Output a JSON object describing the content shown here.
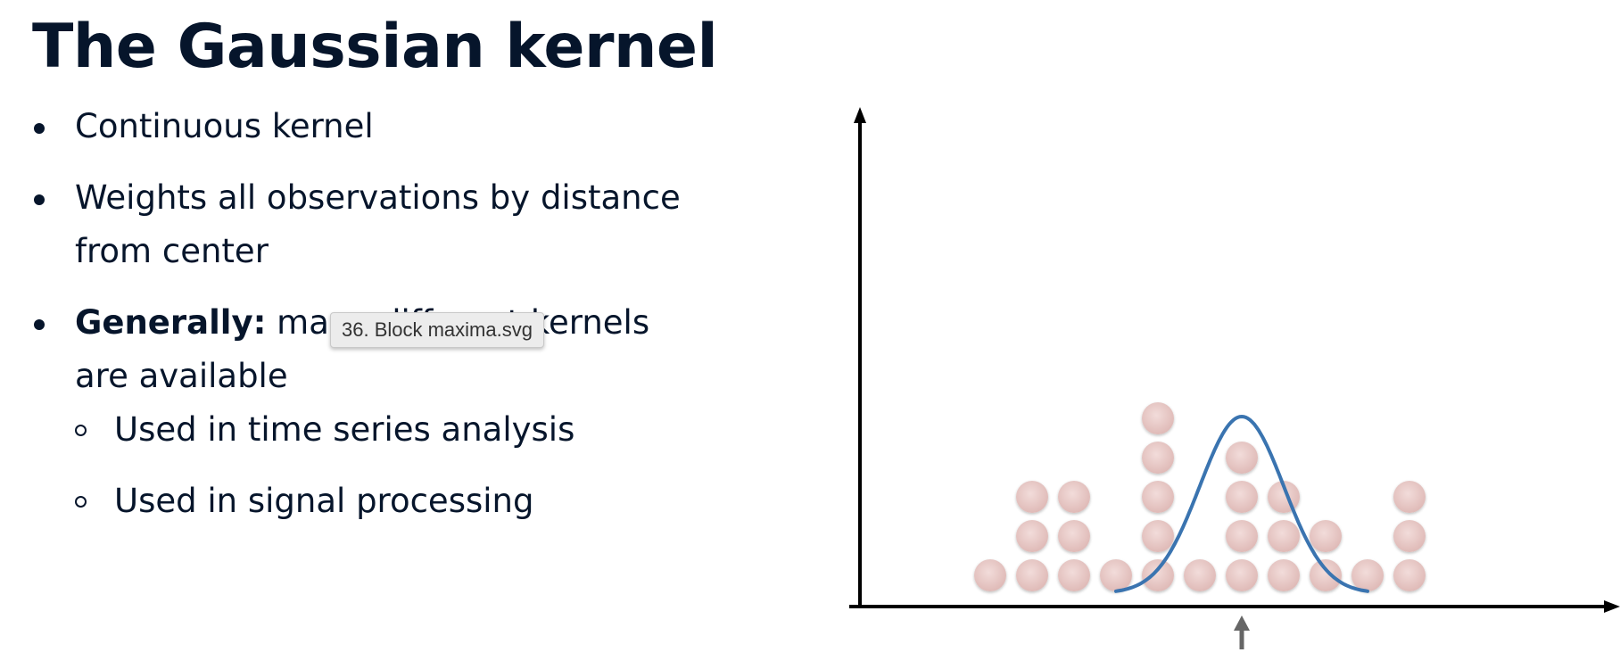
{
  "title": "The Gaussian kernel",
  "bullets": [
    {
      "text": "Continuous kernel"
    },
    {
      "text": "Weights all observations by distance from center"
    },
    {
      "bold": "Generally:",
      "text": " many different kernels are available"
    }
  ],
  "sub_bullets": [
    {
      "text": "Used in time series analysis"
    },
    {
      "text": "Used in signal processing"
    }
  ],
  "tooltip": "36. Block maxima.svg",
  "colors": {
    "text": "#06152b",
    "dot_fill": "#e8c8c6",
    "curve": "#3a74b0",
    "axis": "#000000",
    "arrow": "#666666"
  },
  "chart_data": {
    "type": "scatter",
    "title": "",
    "description_note": "",
    "columns": [
      {
        "x": 1,
        "count": 1
      },
      {
        "x": 2,
        "count": 3
      },
      {
        "x": 3,
        "count": 3
      },
      {
        "x": 4,
        "count": 1
      },
      {
        "x": 5,
        "count": 5
      },
      {
        "x": 6,
        "count": 1
      },
      {
        "x": 7,
        "count": 4
      },
      {
        "x": 8,
        "count": 3
      },
      {
        "x": 9,
        "count": 2
      },
      {
        "x": 10,
        "count": 1
      },
      {
        "x": 11,
        "count": 3
      }
    ],
    "kernel": {
      "type": "gaussian",
      "center": 7,
      "sigma": 1.0,
      "peak_height": 4.5
    },
    "center_marker_x": 7,
    "grid": false
  }
}
